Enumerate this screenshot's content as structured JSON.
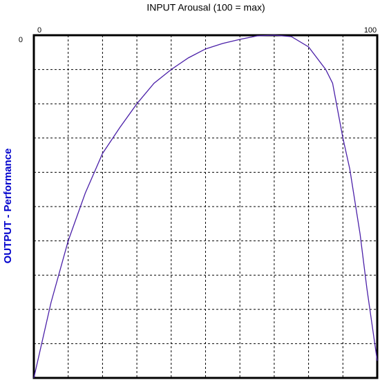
{
  "chart_data": {
    "type": "line",
    "title": "INPUT Arousal (100 = max)",
    "ylabel": "OUTPUT - Performance",
    "x": [
      0,
      5,
      10,
      15,
      20,
      25,
      30,
      35,
      40,
      45,
      50,
      55,
      60,
      65,
      70,
      75,
      80,
      85,
      87,
      90,
      92,
      95,
      97,
      100
    ],
    "series": [
      {
        "color": "#4a1fa8",
        "values": [
          -100,
          -78,
          -60,
          -46,
          -34.5,
          -27,
          -20,
          -14,
          -10,
          -6.6,
          -4,
          -2.4,
          -1.2,
          -0.2,
          0,
          -0.4,
          -3.4,
          -10,
          -14,
          -30,
          -39,
          -58,
          -74,
          -95
        ]
      }
    ],
    "xlim": [
      0,
      100
    ],
    "xticks": [
      0,
      100
    ],
    "ylim": [
      -100,
      0
    ],
    "yticks": [
      0
    ],
    "xgrid": [
      10,
      20,
      30,
      40,
      50,
      60,
      70,
      80,
      90
    ],
    "ygrid": [
      -10,
      -20,
      -30,
      -40,
      -50,
      -60,
      -70,
      -80,
      -90
    ],
    "title_color": "#000000",
    "ylabel_color": "#0000cc"
  }
}
